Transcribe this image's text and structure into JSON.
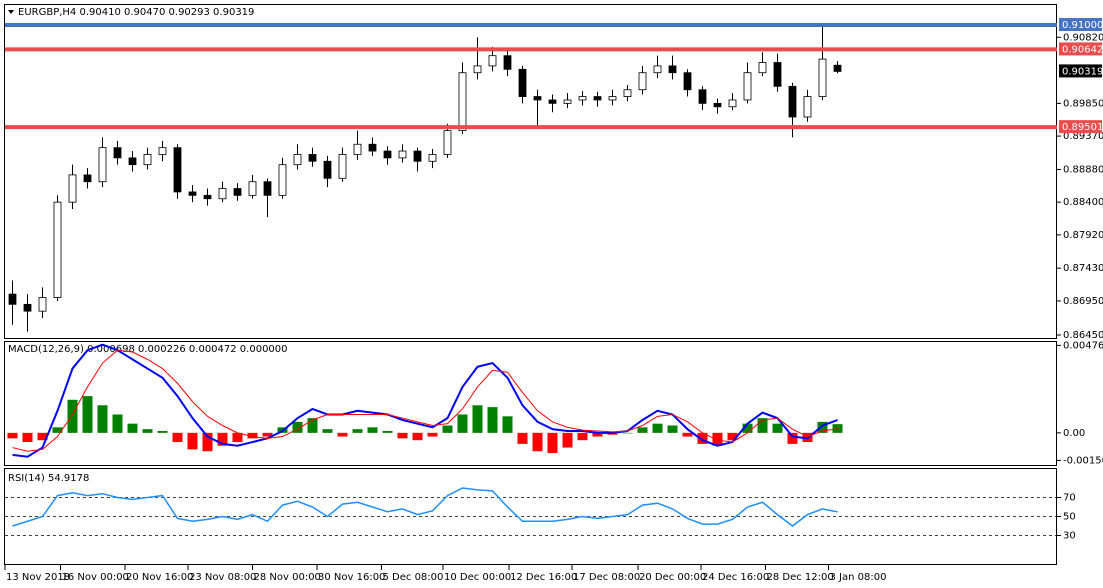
{
  "chart_data": [
    {
      "type": "candlestick",
      "label": "EURGBP,H4 0.90410 0.90470 0.90293 0.90319",
      "open": [
        0.8705,
        0.869,
        0.868,
        0.87,
        0.884,
        0.888,
        0.887,
        0.892,
        0.8905,
        0.8895,
        0.891,
        0.892,
        0.8855,
        0.885,
        0.8845,
        0.886,
        0.885,
        0.887,
        0.885,
        0.8895,
        0.891,
        0.89,
        0.8875,
        0.891,
        0.8925,
        0.8915,
        0.8905,
        0.8915,
        0.89,
        0.891,
        0.8945,
        0.903,
        0.904,
        0.9055,
        0.9035,
        0.8995,
        0.899,
        0.8985,
        0.899,
        0.8995,
        0.899,
        0.8995,
        0.9005,
        0.903,
        0.904,
        0.903,
        0.9005,
        0.8985,
        0.898,
        0.899,
        0.903,
        0.9045,
        0.901,
        0.8965,
        0.8995,
        0.9041
      ],
      "high": [
        0.8725,
        0.8705,
        0.8715,
        0.885,
        0.8895,
        0.889,
        0.8935,
        0.893,
        0.8915,
        0.892,
        0.893,
        0.8925,
        0.8865,
        0.886,
        0.887,
        0.8868,
        0.888,
        0.8875,
        0.8905,
        0.8925,
        0.892,
        0.8908,
        0.892,
        0.8945,
        0.8935,
        0.8922,
        0.8925,
        0.892,
        0.8918,
        0.8955,
        0.9045,
        0.9082,
        0.9068,
        0.9065,
        0.904,
        0.9005,
        0.8998,
        0.9,
        0.9003,
        0.9002,
        0.9005,
        0.9012,
        0.904,
        0.9055,
        0.9055,
        0.9035,
        0.901,
        0.8992,
        0.9,
        0.9045,
        0.906,
        0.9058,
        0.9015,
        0.9005,
        0.91,
        0.9047
      ],
      "low": [
        0.866,
        0.865,
        0.867,
        0.8695,
        0.883,
        0.886,
        0.8862,
        0.8895,
        0.8885,
        0.8888,
        0.89,
        0.8845,
        0.884,
        0.8835,
        0.884,
        0.8842,
        0.8845,
        0.8818,
        0.8845,
        0.8888,
        0.8892,
        0.8862,
        0.887,
        0.8902,
        0.8908,
        0.8895,
        0.8898,
        0.8885,
        0.889,
        0.8905,
        0.894,
        0.902,
        0.9032,
        0.9025,
        0.8985,
        0.895,
        0.8972,
        0.8978,
        0.8982,
        0.898,
        0.8982,
        0.8988,
        0.8998,
        0.9022,
        0.902,
        0.8995,
        0.8975,
        0.897,
        0.8975,
        0.8985,
        0.9025,
        0.9002,
        0.8935,
        0.8958,
        0.899,
        0.90293
      ],
      "close": [
        0.869,
        0.868,
        0.87,
        0.884,
        0.888,
        0.887,
        0.892,
        0.8905,
        0.8895,
        0.891,
        0.892,
        0.8855,
        0.885,
        0.8845,
        0.886,
        0.885,
        0.887,
        0.885,
        0.8895,
        0.891,
        0.89,
        0.8875,
        0.891,
        0.8925,
        0.8915,
        0.8905,
        0.8915,
        0.89,
        0.891,
        0.8945,
        0.903,
        0.904,
        0.9055,
        0.9035,
        0.8995,
        0.899,
        0.8985,
        0.899,
        0.8995,
        0.899,
        0.8995,
        0.9005,
        0.903,
        0.904,
        0.903,
        0.9005,
        0.8985,
        0.898,
        0.899,
        0.903,
        0.9045,
        0.901,
        0.8965,
        0.8995,
        0.905,
        0.90319
      ],
      "up_color": "#ffffff",
      "down_color": "#000000",
      "ylim": [
        0.86406,
        0.91294
      ],
      "yticks": [
        {
          "value": 0.9082,
          "label": "0.90820"
        },
        {
          "value": 0.8985,
          "label": "0.89850"
        },
        {
          "value": 0.8937,
          "label": "0.89370"
        },
        {
          "value": 0.8888,
          "label": "0.88880"
        },
        {
          "value": 0.884,
          "label": "0.88400"
        },
        {
          "value": 0.8792,
          "label": "0.87920"
        },
        {
          "value": 0.8743,
          "label": "0.87430"
        },
        {
          "value": 0.8695,
          "label": "0.86950"
        },
        {
          "value": 0.8645,
          "label": "0.86450"
        }
      ],
      "hlines": [
        {
          "value": 0.91,
          "label": "0.91000",
          "color": "#4472c4"
        },
        {
          "value": 0.90642,
          "label": "0.90642",
          "color": "#e84c4c"
        },
        {
          "value": 0.89501,
          "label": "0.89501",
          "color": "#e84c4c"
        }
      ],
      "current_price": 0.90319,
      "xticks": [
        {
          "value": 0,
          "label": "13 Nov 2018"
        },
        {
          "value": 3.7,
          "label": "16 Nov 00:00"
        },
        {
          "value": 8,
          "label": "20 Nov 16:00"
        },
        {
          "value": 12.2,
          "label": "23 Nov 08:00"
        },
        {
          "value": 16.5,
          "label": "28 Nov 00:00"
        },
        {
          "value": 20.8,
          "label": "30 Nov 16:00"
        },
        {
          "value": 25.1,
          "label": "5 Dec 08:00"
        },
        {
          "value": 29.2,
          "label": "10 Dec 00:00"
        },
        {
          "value": 33.6,
          "label": "12 Dec 16:00"
        },
        {
          "value": 37.8,
          "label": "17 Dec 08:00"
        },
        {
          "value": 42.2,
          "label": "20 Dec 00:00"
        },
        {
          "value": 46.4,
          "label": "24 Dec 16:00"
        },
        {
          "value": 50.7,
          "label": "28 Dec 12:00"
        },
        {
          "value": 54.9,
          "label": "3 Jan 08:00"
        }
      ]
    },
    {
      "type": "macd",
      "label": "MACD(12,26,9) 0.000698 0.000226 0.000472 0.000000",
      "ylim": [
        -0.00175,
        0.005
      ],
      "yticks": [
        0.004763,
        {
          "value": 0,
          "label": "0.00"
        },
        -0.001501
      ],
      "histogram": {
        "color": "#008000",
        "negative_color": "#ff0000",
        "values": [
          -0.0003,
          -0.0005,
          -0.0004,
          0.0003,
          0.0018,
          0.002,
          0.0015,
          0.001,
          0.0005,
          0.0002,
          0.0001,
          -0.0005,
          -0.0009,
          -0.001,
          -0.0007,
          -0.0005,
          -0.0003,
          -0.0002,
          0.0003,
          0.0006,
          0.0008,
          0.0002,
          -0.0002,
          0.0002,
          0.0003,
          0.0001,
          -0.0003,
          -0.0004,
          -0.0002,
          0.0004,
          0.001,
          0.0015,
          0.0014,
          0.0009,
          -0.0006,
          -0.001,
          -0.0011,
          -0.0008,
          -0.0004,
          -0.0002,
          -0.0001,
          0,
          0.0003,
          0.0005,
          0.0004,
          -0.0002,
          -0.0006,
          -0.0007,
          -0.0004,
          0.0005,
          0.0008,
          0.0005,
          -0.0006,
          -0.0005,
          0.0006,
          0.000472
        ]
      },
      "series": [
        {
          "color": "#0000ff",
          "values": [
            -0.0012,
            -0.0013,
            -0.0008,
            0.0012,
            0.0035,
            0.0045,
            0.0048,
            0.0045,
            0.004,
            0.0035,
            0.003,
            0.002,
            0.0008,
            -0.0002,
            -0.0006,
            -0.0007,
            -0.0005,
            -0.0003,
            0.0001,
            0.0008,
            0.0013,
            0.001,
            0.001,
            0.0012,
            0.0011,
            0.001,
            0.0007,
            0.0005,
            0.0003,
            0.0008,
            0.0025,
            0.0036,
            0.0038,
            0.003,
            0.0015,
            0.0006,
            0.0002,
            0.0001,
            0.0001,
            0,
            0,
            0.0001,
            0.0007,
            0.0012,
            0.001,
            0.0002,
            -0.0004,
            -0.0007,
            -0.0005,
            0.0005,
            0.0011,
            0.0008,
            -0.0002,
            -0.0003,
            0.0004,
            0.000698
          ]
        },
        {
          "color": "#ff0000",
          "values": [
            -0.0008,
            -0.001,
            -0.0009,
            -0.0002,
            0.001,
            0.0025,
            0.0038,
            0.0045,
            0.0044,
            0.004,
            0.0035,
            0.0027,
            0.0017,
            0.0009,
            0.0004,
            0,
            -0.0002,
            -0.0003,
            -0.0002,
            0.0002,
            0.0007,
            0.001,
            0.001,
            0.001,
            0.001,
            0.001,
            0.0008,
            0.0006,
            0.0004,
            0.0005,
            0.0013,
            0.0025,
            0.0034,
            0.0033,
            0.0022,
            0.0012,
            0.0006,
            0.0003,
            0.00015,
            0.0001,
            5e-05,
            0.0001,
            0.0004,
            0.0009,
            0.001,
            0.0006,
            0,
            -0.0004,
            -0.0005,
            0,
            0.0007,
            0.0008,
            0.0002,
            -0.0002,
            0.0001,
            0.000226
          ]
        }
      ]
    },
    {
      "type": "line",
      "label": "RSI(14) 54.9178",
      "ylim": [
        0,
        100
      ],
      "yticks": [
        70,
        50,
        30
      ],
      "grid": "dashed",
      "series": [
        {
          "color": "#1e90ff",
          "values": [
            40,
            45,
            50,
            72,
            75,
            72,
            74,
            70,
            68,
            70,
            72,
            48,
            45,
            47,
            50,
            47,
            52,
            45,
            62,
            66,
            60,
            50,
            63,
            65,
            60,
            55,
            58,
            52,
            56,
            72,
            80,
            78,
            77,
            60,
            45,
            45,
            45,
            47,
            50,
            48,
            50,
            52,
            62,
            64,
            58,
            48,
            42,
            42,
            47,
            60,
            65,
            52,
            40,
            52,
            58,
            54.9178
          ]
        }
      ]
    }
  ]
}
